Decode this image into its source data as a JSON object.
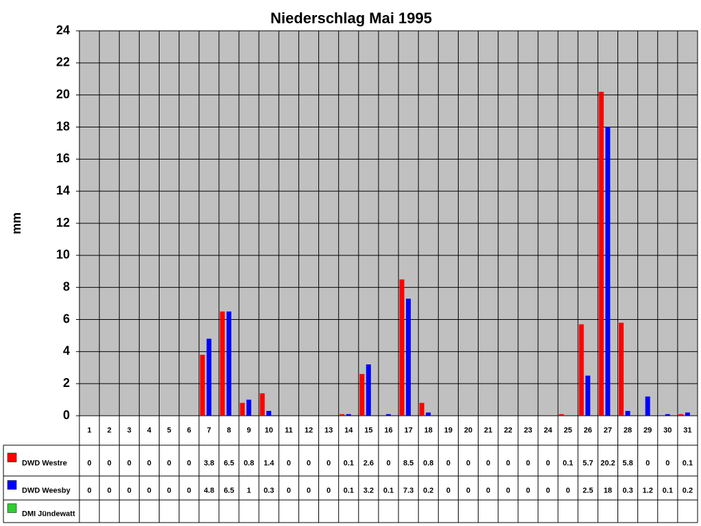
{
  "chart_data": {
    "type": "bar",
    "title": "Niederschlag Mai 1995",
    "y_label": "mm",
    "categories": [
      "1",
      "2",
      "3",
      "4",
      "5",
      "6",
      "7",
      "8",
      "9",
      "10",
      "11",
      "12",
      "13",
      "14",
      "15",
      "16",
      "17",
      "18",
      "19",
      "20",
      "21",
      "22",
      "23",
      "24",
      "25",
      "26",
      "27",
      "28",
      "29",
      "30",
      "31"
    ],
    "series": [
      {
        "name": "DWD Westre",
        "color": "#ff0000",
        "values": [
          0,
          0,
          0,
          0,
          0,
          0,
          3.8,
          6.5,
          0.8,
          1.4,
          0,
          0,
          0,
          0.1,
          2.6,
          0,
          8.5,
          0.8,
          0,
          0,
          0,
          0,
          0,
          0,
          0.1,
          5.7,
          20.2,
          5.8,
          0,
          0,
          0.1
        ]
      },
      {
        "name": "DWD Weesby",
        "color": "#0000ff",
        "values": [
          0,
          0,
          0,
          0,
          0,
          0,
          4.8,
          6.5,
          1,
          0.3,
          0,
          0,
          0,
          0.1,
          3.2,
          0.1,
          7.3,
          0.2,
          0,
          0,
          0,
          0,
          0,
          0,
          0,
          2.5,
          18,
          0.3,
          1.2,
          0.1,
          0.2
        ]
      },
      {
        "name": "DMI Jündewatt",
        "color": "#33cc33",
        "values": [
          null,
          null,
          null,
          null,
          null,
          null,
          null,
          null,
          null,
          null,
          null,
          null,
          null,
          null,
          null,
          null,
          null,
          null,
          null,
          null,
          null,
          null,
          null,
          null,
          null,
          null,
          null,
          null,
          null,
          null,
          null
        ]
      }
    ],
    "ylim": [
      0,
      24
    ],
    "yticks": [
      0,
      2,
      4,
      6,
      8,
      10,
      12,
      14,
      16,
      18,
      20,
      22,
      24
    ],
    "grid": true,
    "background": "#c0c0c0"
  }
}
